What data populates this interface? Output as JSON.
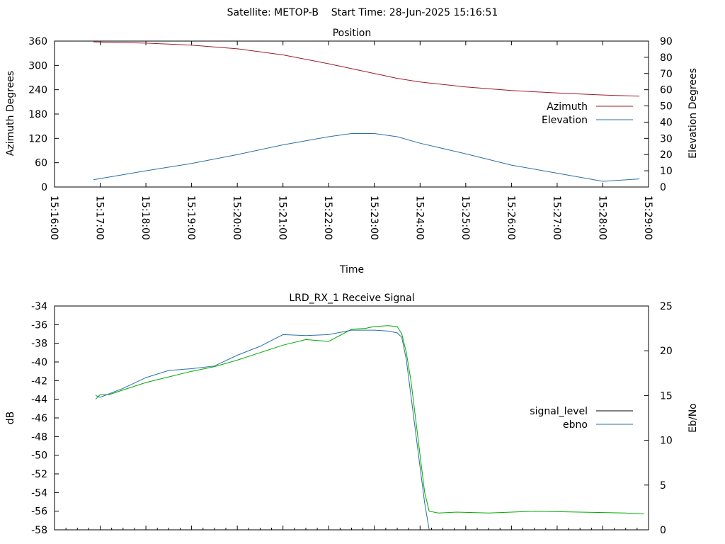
{
  "header": {
    "satellite": "Satellite: METOP-B",
    "start_time": "Start Time: 28-Jun-2025 15:16:51"
  },
  "chart_data": [
    {
      "type": "line",
      "title": "Position",
      "xlabel": "Time",
      "ylabel": "Azimuth Degrees",
      "y2label": "Elevation Degrees",
      "x_ticks": [
        "15:16:00",
        "15:17:00",
        "15:18:00",
        "15:19:00",
        "15:20:00",
        "15:21:00",
        "15:22:00",
        "15:23:00",
        "15:24:00",
        "15:25:00",
        "15:26:00",
        "15:27:00",
        "15:28:00",
        "15:29:00"
      ],
      "xlim": [
        0,
        13
      ],
      "ylim": [
        0,
        360
      ],
      "y_ticks": [
        0,
        60,
        120,
        180,
        240,
        300,
        360
      ],
      "y2lim": [
        0,
        90
      ],
      "y2_ticks": [
        0,
        10,
        20,
        30,
        40,
        50,
        60,
        70,
        80,
        90
      ],
      "legend_position": "right",
      "series": [
        {
          "name": "Azimuth",
          "axis": "y",
          "color": "#9b1c2a",
          "x": [
            0.85,
            2,
            3,
            4,
            5,
            6,
            6.5,
            7,
            7.5,
            8,
            9,
            10,
            11,
            12,
            12.8
          ],
          "values": [
            358,
            355,
            350,
            341,
            326,
            304,
            292,
            280,
            268,
            259,
            247,
            238,
            232,
            227,
            224
          ]
        },
        {
          "name": "Elevation",
          "axis": "y2",
          "color": "#2a6fa8",
          "x": [
            0.85,
            2,
            3,
            4,
            5,
            6,
            6.5,
            7,
            7.5,
            8,
            9,
            10,
            11,
            12,
            12.8
          ],
          "values": [
            4.5,
            10,
            14.5,
            20,
            26,
            31,
            33,
            33,
            31,
            27,
            20.5,
            13.5,
            8.5,
            3.5,
            5
          ]
        }
      ]
    },
    {
      "type": "line",
      "title": "LRD_RX_1 Receive Signal",
      "ylabel": "dB",
      "y2label": "Eb/No",
      "xlim": [
        0,
        13
      ],
      "ylim": [
        -58,
        -34
      ],
      "y_ticks": [
        -58,
        -56,
        -54,
        -52,
        -50,
        -48,
        -46,
        -44,
        -42,
        -40,
        -38,
        -36,
        -34
      ],
      "y2lim": [
        0,
        25
      ],
      "y2_ticks": [
        0,
        5,
        10,
        15,
        20,
        25
      ],
      "legend_position": "right",
      "series": [
        {
          "name": "signal_level",
          "axis": "y",
          "color": "#00aa00",
          "x": [
            0.9,
            1.0,
            1.2,
            1.5,
            2.0,
            2.5,
            3.0,
            3.5,
            4.0,
            4.5,
            5.0,
            5.5,
            6.0,
            6.5,
            6.8,
            7.0,
            7.3,
            7.5,
            7.6,
            7.7,
            7.8,
            7.9,
            8.0,
            8.1,
            8.2,
            8.4,
            8.8,
            9.5,
            10.5,
            11.5,
            12.5,
            12.9
          ],
          "values": [
            -44,
            -43.5,
            -43.5,
            -43,
            -42.2,
            -41.6,
            -41,
            -40.5,
            -39.8,
            -39,
            -38.2,
            -37.6,
            -37.8,
            -36.5,
            -36.4,
            -36.2,
            -36.1,
            -36.2,
            -37,
            -39,
            -42,
            -46,
            -50,
            -54,
            -56,
            -56.2,
            -56.1,
            -56.2,
            -56,
            -56.1,
            -56.2,
            -56.3
          ]
        },
        {
          "name": "ebno",
          "axis": "y2",
          "color": "#2a6fa8",
          "x": [
            0.9,
            1.0,
            1.2,
            1.5,
            2.0,
            2.5,
            3.0,
            3.5,
            4.0,
            4.5,
            5.0,
            5.5,
            6.0,
            6.5,
            7.0,
            7.3,
            7.5,
            7.6,
            7.7,
            7.8,
            7.9,
            8.0,
            8.1,
            8.2
          ],
          "values": [
            15,
            14.8,
            15.2,
            15.8,
            17,
            17.8,
            18,
            18.3,
            19.5,
            20.5,
            21.8,
            21.7,
            21.8,
            22.3,
            22.3,
            22.2,
            22,
            21.5,
            19,
            15,
            11,
            7,
            3,
            0
          ]
        }
      ]
    }
  ]
}
